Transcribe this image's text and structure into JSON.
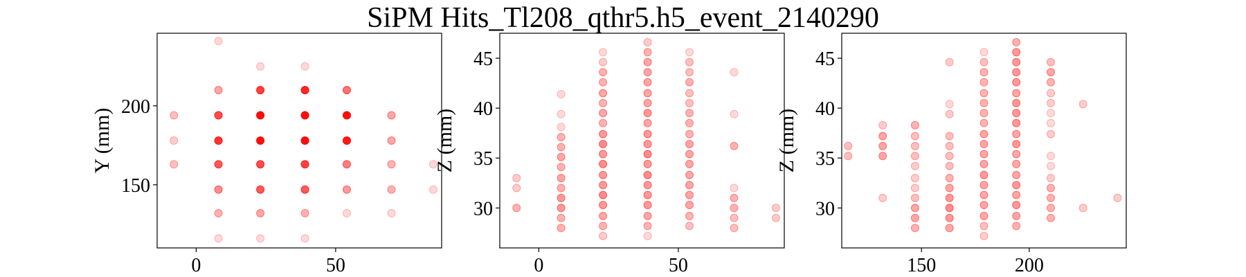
{
  "chart_data": {
    "title": "SiPM Hits_Tl208_qthr5.h5_event_2140290",
    "marker_color": "#ff0000",
    "panels": [
      {
        "type": "scatter",
        "ylabel": "Y (mm)",
        "xlim": [
          -14,
          88
        ],
        "ylim": [
          110,
          246
        ],
        "xticks": [
          0,
          50
        ],
        "yticks": [
          150,
          200
        ],
        "points": [
          [
            -8,
            194,
            0.25
          ],
          [
            -8,
            178,
            0.2
          ],
          [
            -8,
            163,
            0.25
          ],
          [
            8,
            241,
            0.15
          ],
          [
            8,
            210,
            0.35
          ],
          [
            8,
            194,
            0.7
          ],
          [
            8,
            178,
            0.8
          ],
          [
            8,
            163,
            0.65
          ],
          [
            8,
            147,
            0.45
          ],
          [
            8,
            132,
            0.3
          ],
          [
            8,
            116,
            0.15
          ],
          [
            23,
            225,
            0.15
          ],
          [
            23,
            210,
            0.75
          ],
          [
            23,
            194,
            0.95
          ],
          [
            23,
            178,
            0.95
          ],
          [
            23,
            163,
            0.7
          ],
          [
            23,
            147,
            0.65
          ],
          [
            23,
            132,
            0.35
          ],
          [
            23,
            116,
            0.15
          ],
          [
            39,
            225,
            0.15
          ],
          [
            39,
            210,
            0.85
          ],
          [
            39,
            194,
            0.95
          ],
          [
            39,
            178,
            0.95
          ],
          [
            39,
            163,
            0.75
          ],
          [
            39,
            147,
            0.65
          ],
          [
            39,
            132,
            0.3
          ],
          [
            39,
            116,
            0.15
          ],
          [
            54,
            210,
            0.55
          ],
          [
            54,
            194,
            0.95
          ],
          [
            54,
            178,
            0.9
          ],
          [
            54,
            163,
            0.5
          ],
          [
            54,
            147,
            0.4
          ],
          [
            54,
            132,
            0.15
          ],
          [
            70,
            194,
            0.35
          ],
          [
            70,
            178,
            0.35
          ],
          [
            70,
            163,
            0.3
          ],
          [
            70,
            147,
            0.3
          ],
          [
            70,
            132,
            0.15
          ],
          [
            85,
            163,
            0.15
          ],
          [
            85,
            147,
            0.15
          ]
        ]
      },
      {
        "type": "scatter",
        "ylabel": "Z (mm)",
        "xlim": [
          -14,
          88
        ],
        "ylim": [
          26,
          47.5
        ],
        "xticks": [
          0,
          50
        ],
        "yticks": [
          30,
          35,
          40,
          45
        ],
        "points": [
          [
            -8,
            33,
            0.2
          ],
          [
            -8,
            32,
            0.2
          ],
          [
            -8,
            30,
            0.3
          ],
          [
            8,
            41.4,
            0.15
          ],
          [
            8,
            39.4,
            0.15
          ],
          [
            8,
            38.1,
            0.15
          ],
          [
            8,
            37.1,
            0.3
          ],
          [
            8,
            36.1,
            0.3
          ],
          [
            8,
            35.1,
            0.35
          ],
          [
            8,
            34.1,
            0.3
          ],
          [
            8,
            33,
            0.35
          ],
          [
            8,
            32,
            0.3
          ],
          [
            8,
            31,
            0.4
          ],
          [
            8,
            30,
            0.4
          ],
          [
            8,
            29,
            0.3
          ],
          [
            8,
            28,
            0.3
          ],
          [
            23,
            45.6,
            0.15
          ],
          [
            23,
            44.6,
            0.2
          ],
          [
            23,
            43.6,
            0.3
          ],
          [
            23,
            42.6,
            0.3
          ],
          [
            23,
            41.5,
            0.35
          ],
          [
            23,
            40.5,
            0.3
          ],
          [
            23,
            39.5,
            0.35
          ],
          [
            23,
            38.5,
            0.3
          ],
          [
            23,
            37.4,
            0.4
          ],
          [
            23,
            36.4,
            0.45
          ],
          [
            23,
            35.4,
            0.4
          ],
          [
            23,
            34.4,
            0.45
          ],
          [
            23,
            33.3,
            0.4
          ],
          [
            23,
            32.3,
            0.4
          ],
          [
            23,
            31.3,
            0.45
          ],
          [
            23,
            30.3,
            0.4
          ],
          [
            23,
            29.2,
            0.35
          ],
          [
            23,
            28.2,
            0.3
          ],
          [
            23,
            27.2,
            0.2
          ],
          [
            39,
            46.6,
            0.2
          ],
          [
            39,
            45.6,
            0.3
          ],
          [
            39,
            44.6,
            0.35
          ],
          [
            39,
            43.6,
            0.35
          ],
          [
            39,
            42.6,
            0.35
          ],
          [
            39,
            41.5,
            0.35
          ],
          [
            39,
            40.5,
            0.35
          ],
          [
            39,
            39.5,
            0.4
          ],
          [
            39,
            38.5,
            0.35
          ],
          [
            39,
            37.4,
            0.4
          ],
          [
            39,
            36.4,
            0.4
          ],
          [
            39,
            35.4,
            0.45
          ],
          [
            39,
            34.4,
            0.4
          ],
          [
            39,
            33.3,
            0.45
          ],
          [
            39,
            32.3,
            0.4
          ],
          [
            39,
            31.3,
            0.4
          ],
          [
            39,
            30.3,
            0.4
          ],
          [
            39,
            29.2,
            0.35
          ],
          [
            39,
            28.2,
            0.3
          ],
          [
            39,
            27.2,
            0.15
          ],
          [
            54,
            45.6,
            0.15
          ],
          [
            54,
            44.6,
            0.25
          ],
          [
            54,
            43.6,
            0.25
          ],
          [
            54,
            42.6,
            0.3
          ],
          [
            54,
            41.5,
            0.25
          ],
          [
            54,
            40.5,
            0.25
          ],
          [
            54,
            39.5,
            0.3
          ],
          [
            54,
            38.5,
            0.3
          ],
          [
            54,
            37.4,
            0.3
          ],
          [
            54,
            36.4,
            0.35
          ],
          [
            54,
            35.4,
            0.35
          ],
          [
            54,
            34.4,
            0.35
          ],
          [
            54,
            33.3,
            0.35
          ],
          [
            54,
            32.3,
            0.35
          ],
          [
            54,
            31.3,
            0.35
          ],
          [
            54,
            30.3,
            0.35
          ],
          [
            54,
            29.2,
            0.3
          ],
          [
            54,
            28.2,
            0.25
          ],
          [
            70,
            43.6,
            0.15
          ],
          [
            70,
            39.4,
            0.15
          ],
          [
            70,
            36.2,
            0.3
          ],
          [
            70,
            32,
            0.15
          ],
          [
            70,
            31,
            0.3
          ],
          [
            70,
            30,
            0.3
          ],
          [
            70,
            29,
            0.25
          ],
          [
            70,
            28,
            0.25
          ],
          [
            85,
            30,
            0.2
          ],
          [
            85,
            29,
            0.2
          ]
        ]
      },
      {
        "type": "scatter",
        "ylabel": "Z (mm)",
        "xlim": [
          113,
          245
        ],
        "ylim": [
          26,
          47.5
        ],
        "xticks": [
          150,
          200
        ],
        "yticks": [
          30,
          35,
          40,
          45
        ],
        "points": [
          [
            116,
            36.2,
            0.25
          ],
          [
            116,
            35.2,
            0.25
          ],
          [
            132,
            38.3,
            0.2
          ],
          [
            132,
            37.2,
            0.35
          ],
          [
            132,
            36.2,
            0.35
          ],
          [
            132,
            35.2,
            0.35
          ],
          [
            132,
            31,
            0.2
          ],
          [
            147,
            38.3,
            0.3
          ],
          [
            147,
            37.2,
            0.25
          ],
          [
            147,
            36.2,
            0.25
          ],
          [
            147,
            35.2,
            0.25
          ],
          [
            147,
            34.2,
            0.2
          ],
          [
            147,
            33,
            0.2
          ],
          [
            147,
            32,
            0.2
          ],
          [
            147,
            31,
            0.25
          ],
          [
            147,
            30,
            0.35
          ],
          [
            147,
            29,
            0.35
          ],
          [
            147,
            28,
            0.3
          ],
          [
            163,
            44.6,
            0.2
          ],
          [
            163,
            40.4,
            0.15
          ],
          [
            163,
            39.4,
            0.2
          ],
          [
            163,
            37.2,
            0.25
          ],
          [
            163,
            36.2,
            0.25
          ],
          [
            163,
            35.2,
            0.25
          ],
          [
            163,
            34.2,
            0.25
          ],
          [
            163,
            33,
            0.3
          ],
          [
            163,
            32,
            0.35
          ],
          [
            163,
            31,
            0.4
          ],
          [
            163,
            30,
            0.45
          ],
          [
            163,
            29,
            0.4
          ],
          [
            163,
            28,
            0.35
          ],
          [
            179,
            45.6,
            0.15
          ],
          [
            179,
            44.6,
            0.25
          ],
          [
            179,
            43.6,
            0.3
          ],
          [
            179,
            42.6,
            0.3
          ],
          [
            179,
            41.5,
            0.3
          ],
          [
            179,
            40.5,
            0.3
          ],
          [
            179,
            39.5,
            0.3
          ],
          [
            179,
            38.5,
            0.3
          ],
          [
            179,
            37.4,
            0.35
          ],
          [
            179,
            36.4,
            0.35
          ],
          [
            179,
            35.4,
            0.35
          ],
          [
            179,
            34.4,
            0.35
          ],
          [
            179,
            33.3,
            0.4
          ],
          [
            179,
            32.3,
            0.35
          ],
          [
            179,
            31.3,
            0.35
          ],
          [
            179,
            30.3,
            0.35
          ],
          [
            179,
            29.2,
            0.35
          ],
          [
            179,
            28.2,
            0.25
          ],
          [
            179,
            27.2,
            0.2
          ],
          [
            194,
            46.6,
            0.3
          ],
          [
            194,
            45.6,
            0.4
          ],
          [
            194,
            44.6,
            0.4
          ],
          [
            194,
            43.6,
            0.4
          ],
          [
            194,
            42.6,
            0.4
          ],
          [
            194,
            41.5,
            0.35
          ],
          [
            194,
            40.5,
            0.4
          ],
          [
            194,
            39.5,
            0.4
          ],
          [
            194,
            38.5,
            0.4
          ],
          [
            194,
            37.4,
            0.35
          ],
          [
            194,
            36.4,
            0.4
          ],
          [
            194,
            35.4,
            0.35
          ],
          [
            194,
            34.4,
            0.35
          ],
          [
            194,
            33.3,
            0.35
          ],
          [
            194,
            32.3,
            0.4
          ],
          [
            194,
            31.3,
            0.35
          ],
          [
            194,
            30.3,
            0.4
          ],
          [
            194,
            29.2,
            0.35
          ],
          [
            194,
            28.2,
            0.3
          ],
          [
            210,
            44.6,
            0.25
          ],
          [
            210,
            43.6,
            0.35
          ],
          [
            210,
            42.6,
            0.3
          ],
          [
            210,
            41.5,
            0.2
          ],
          [
            210,
            40.5,
            0.2
          ],
          [
            210,
            39.5,
            0.15
          ],
          [
            210,
            38.5,
            0.15
          ],
          [
            210,
            37.4,
            0.2
          ],
          [
            210,
            35.2,
            0.15
          ],
          [
            210,
            34.2,
            0.15
          ],
          [
            210,
            33,
            0.2
          ],
          [
            210,
            32,
            0.3
          ],
          [
            210,
            31,
            0.3
          ],
          [
            210,
            30,
            0.3
          ],
          [
            210,
            29,
            0.3
          ],
          [
            225,
            40.4,
            0.2
          ],
          [
            225,
            30,
            0.2
          ],
          [
            241,
            31,
            0.2
          ]
        ]
      }
    ]
  }
}
